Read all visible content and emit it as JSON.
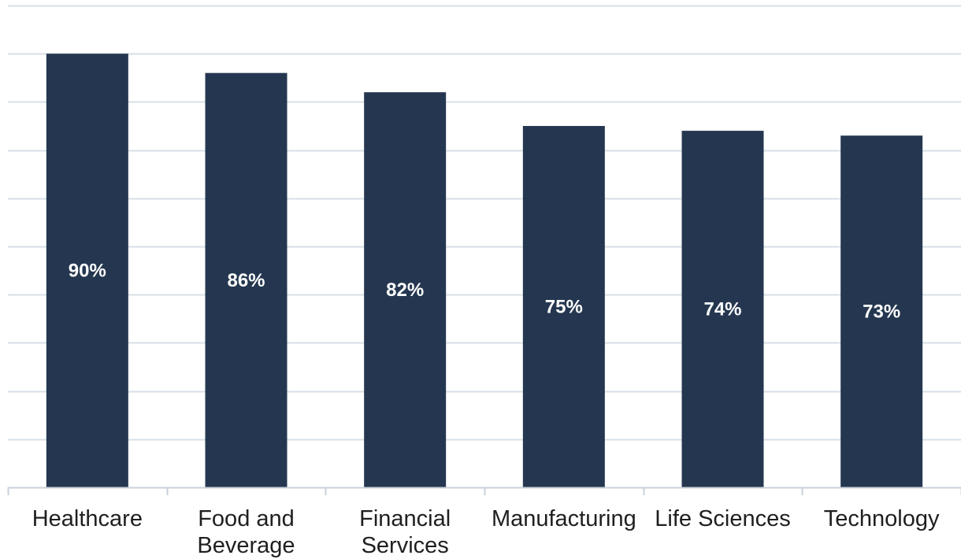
{
  "chart_data": {
    "type": "bar",
    "categories": [
      [
        "Healthcare"
      ],
      [
        "Food and",
        "Beverage"
      ],
      [
        "Financial",
        "Services"
      ],
      [
        "Manufacturing"
      ],
      [
        "Life Sciences"
      ],
      [
        "Technology"
      ]
    ],
    "values": [
      90,
      86,
      82,
      75,
      74,
      73
    ],
    "value_labels": [
      "90%",
      "86%",
      "82%",
      "75%",
      "74%",
      "73%"
    ],
    "ylim": [
      0,
      100
    ],
    "y_grid_step": 10,
    "grid": true,
    "legend": "none",
    "colors": {
      "bar": "#253750",
      "grid": "#d7dfe7",
      "axis": "#c9d1da",
      "value_text": "#ffffff",
      "category_text": "#1f1f1f"
    }
  }
}
